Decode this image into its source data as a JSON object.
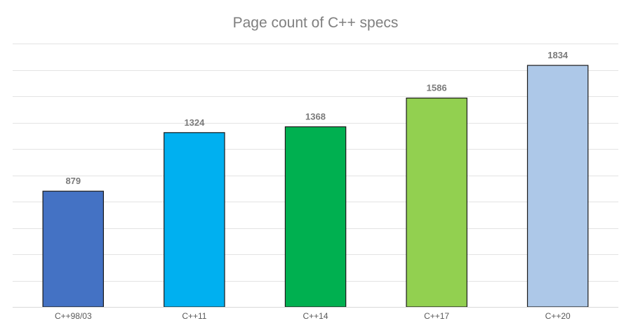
{
  "chart_data": {
    "type": "bar",
    "title": "Page count of C++ specs",
    "xlabel": "",
    "ylabel": "",
    "categories": [
      "C++98/03",
      "C++11",
      "C++14",
      "C++17",
      "C++20"
    ],
    "values": [
      879,
      1324,
      1368,
      1586,
      1834
    ],
    "data_labels": [
      "879",
      "1324",
      "1368",
      "1586",
      "1834"
    ],
    "colors": [
      "#4472c4",
      "#00b0f0",
      "#00b050",
      "#92d050",
      "#adc8e8"
    ],
    "ylim": [
      0,
      2000
    ],
    "y_gridline_step": 200,
    "y_tick_labels_visible": false,
    "grid": true,
    "legend": "none"
  }
}
